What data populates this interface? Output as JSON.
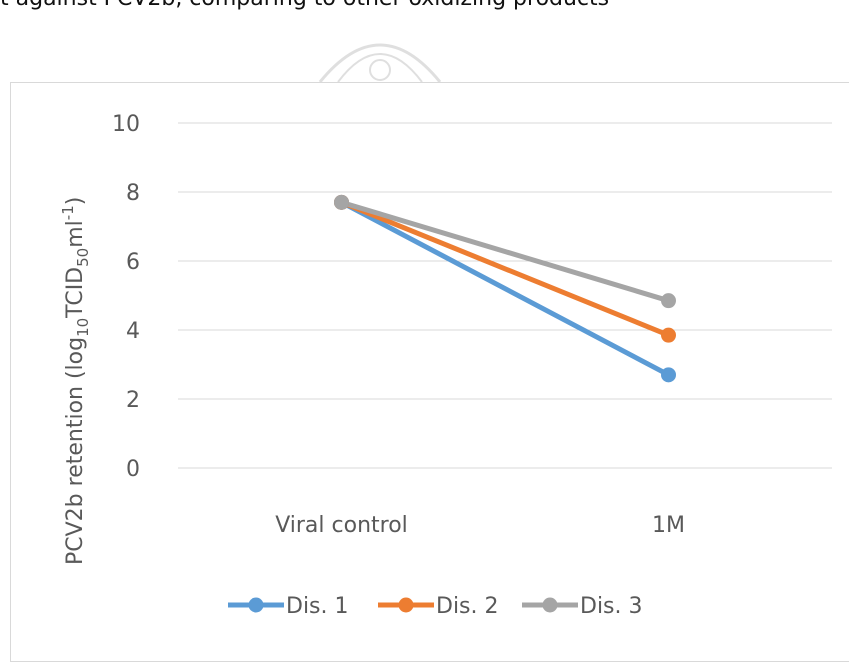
{
  "page": {
    "caption_fragment": "t against PCV2b, comparing to other oxidizing products"
  },
  "chart_data": {
    "type": "line",
    "categories": [
      "Viral control",
      "1M"
    ],
    "series": [
      {
        "name": "Dis. 1",
        "color": "#5b9bd5",
        "values": [
          7.7,
          2.7
        ]
      },
      {
        "name": "Dis. 2",
        "color": "#ed7d31",
        "values": [
          7.7,
          3.85
        ]
      },
      {
        "name": "Dis. 3",
        "color": "#a5a5a5",
        "values": [
          7.7,
          4.85
        ]
      }
    ],
    "ylabel": {
      "main": "PCV2b retention  (log",
      "sub1": "10",
      "mid": "TCID",
      "sub2": "50",
      "unit": "ml",
      "sup": "-1",
      "close": ")"
    },
    "ylim": [
      0,
      10
    ],
    "yticks": [
      "0",
      "2",
      "4",
      "6",
      "8",
      "10"
    ],
    "grid": true,
    "legend_position": "bottom"
  }
}
